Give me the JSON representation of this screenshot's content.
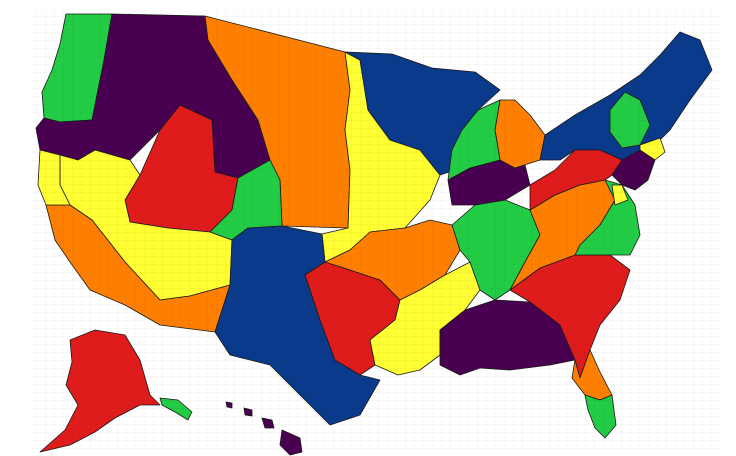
{
  "map": {
    "palette": {
      "purple": "#4a0050",
      "blue": "#0a3a8c",
      "orange": "#ff8000",
      "yellow": "#ffff33",
      "red": "#e01b1b",
      "green": "#22cc44"
    },
    "regions": [
      {
        "name": "region-pacific-northwest-coast",
        "color": "green"
      },
      {
        "name": "region-northern-rockies-plateau",
        "color": "purple"
      },
      {
        "name": "region-northern-plains",
        "color": "orange"
      },
      {
        "name": "region-central-plains-yellow",
        "color": "yellow"
      },
      {
        "name": "region-upper-midwest",
        "color": "blue"
      },
      {
        "name": "region-great-basin-utah",
        "color": "red"
      },
      {
        "name": "region-nevada-arizona",
        "color": "yellow"
      },
      {
        "name": "region-california-south",
        "color": "orange"
      },
      {
        "name": "region-northern-california",
        "color": "yellow"
      },
      {
        "name": "region-colorado-front-range",
        "color": "green"
      },
      {
        "name": "region-southwest-texas",
        "color": "blue"
      },
      {
        "name": "region-oklahoma-north-texas",
        "color": "red"
      },
      {
        "name": "region-ozarks-missouri",
        "color": "orange"
      },
      {
        "name": "region-lower-mississippi",
        "color": "yellow"
      },
      {
        "name": "region-deep-south",
        "color": "purple"
      },
      {
        "name": "region-southeast-atlantic",
        "color": "red"
      },
      {
        "name": "region-florida-peninsula",
        "color": "orange"
      },
      {
        "name": "region-tennessee-valley",
        "color": "green"
      },
      {
        "name": "region-appalachia",
        "color": "orange"
      },
      {
        "name": "region-virginia-piedmont",
        "color": "green"
      },
      {
        "name": "region-ohio-valley",
        "color": "purple"
      },
      {
        "name": "region-michigan",
        "color": "orange"
      },
      {
        "name": "region-great-lakes-green",
        "color": "green"
      },
      {
        "name": "region-northeast",
        "color": "blue"
      },
      {
        "name": "region-mid-atlantic-red",
        "color": "red"
      },
      {
        "name": "region-new-england-green",
        "color": "green"
      },
      {
        "name": "region-alaska",
        "color": "red"
      },
      {
        "name": "region-alaska-panhandle",
        "color": "green"
      },
      {
        "name": "region-hawaii",
        "color": "purple"
      }
    ]
  }
}
